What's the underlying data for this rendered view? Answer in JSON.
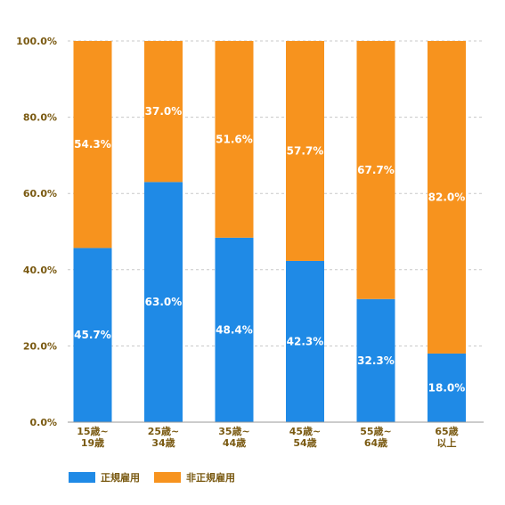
{
  "chart_data": {
    "type": "bar",
    "stacked": true,
    "categories": [
      [
        "15歳~",
        "19歳"
      ],
      [
        "25歳~",
        "34歳"
      ],
      [
        "35歳~",
        "44歳"
      ],
      [
        "45歳~",
        "54歳"
      ],
      [
        "55歳~",
        "64歳"
      ],
      [
        "65歳",
        "以上"
      ]
    ],
    "series": [
      {
        "name": "正規雇用",
        "color": "#1f8ae6",
        "values": [
          45.7,
          63.0,
          48.4,
          42.3,
          32.3,
          18.0
        ],
        "labels": [
          "45.7%",
          "63.0%",
          "48.4%",
          "42.3%",
          "32.3%",
          "18.0%"
        ]
      },
      {
        "name": "非正規雇用",
        "color": "#f7931e",
        "values": [
          54.3,
          37.0,
          51.6,
          57.7,
          67.7,
          82.0
        ],
        "labels": [
          "54.3%",
          "37.0%",
          "51.6%",
          "57.7%",
          "67.7%",
          "82.0%"
        ]
      }
    ],
    "ylim": [
      0,
      100
    ],
    "yticks": [
      0,
      20,
      40,
      60,
      80,
      100
    ],
    "ytick_labels": [
      "0.0%",
      "20.0%",
      "40.0%",
      "60.0%",
      "80.0%",
      "100.0%"
    ],
    "grid": true,
    "legend_position": "bottom-left"
  }
}
